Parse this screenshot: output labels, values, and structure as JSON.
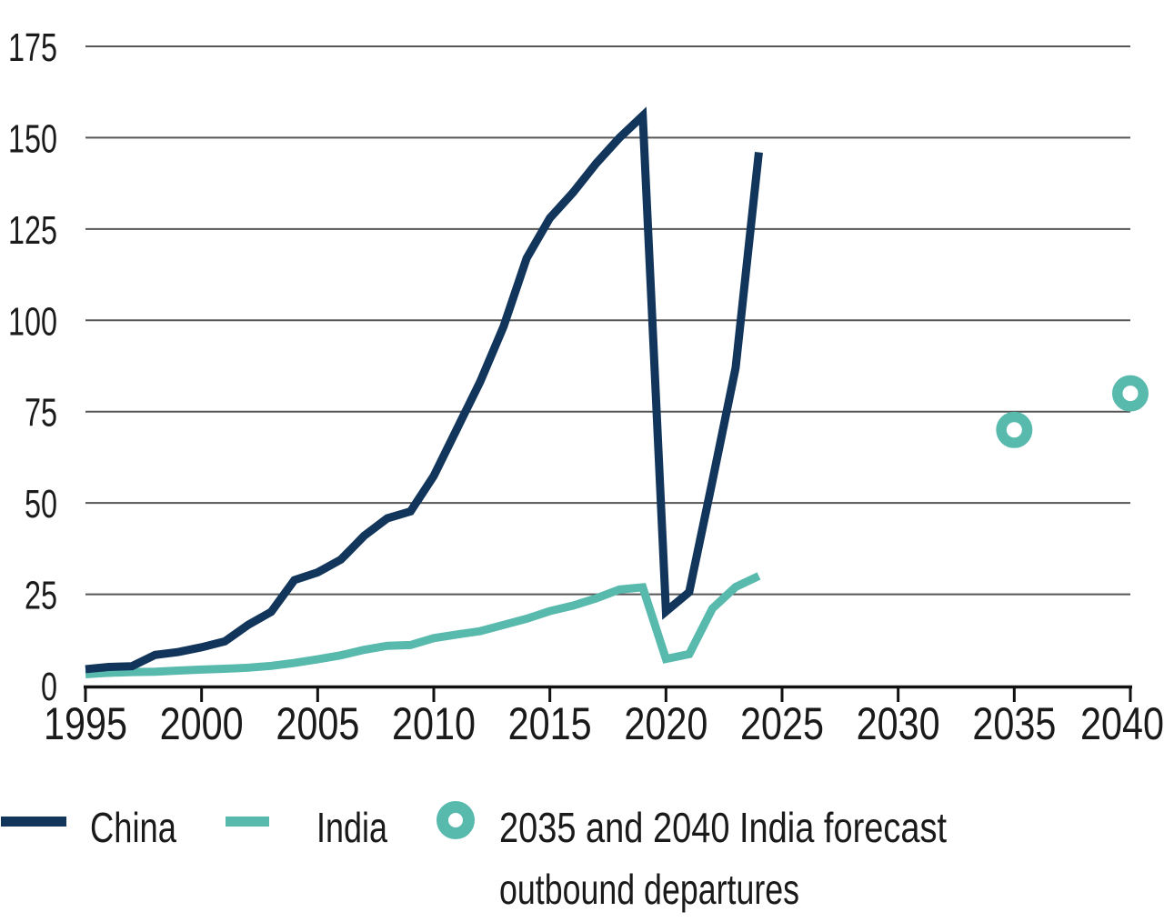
{
  "chart_data": {
    "type": "line",
    "title": "",
    "xlabel": "",
    "ylabel": "",
    "xlim": [
      1995,
      2040
    ],
    "ylim": [
      0,
      175
    ],
    "x_ticks": [
      1995,
      2000,
      2005,
      2010,
      2015,
      2020,
      2025,
      2030,
      2035,
      2040
    ],
    "y_ticks": [
      0,
      25,
      50,
      75,
      100,
      125,
      150,
      175
    ],
    "grid": "horizontal",
    "legend_position": "bottom",
    "x": [
      1995,
      1996,
      1997,
      1998,
      1999,
      2000,
      2001,
      2002,
      2003,
      2004,
      2005,
      2006,
      2007,
      2008,
      2009,
      2010,
      2011,
      2012,
      2013,
      2014,
      2015,
      2016,
      2017,
      2018,
      2019,
      2020,
      2021,
      2022,
      2023,
      2024
    ],
    "series": [
      {
        "name": "India",
        "color": "#58b9ad",
        "values": [
          3.1,
          3.5,
          3.7,
          3.8,
          4.1,
          4.4,
          4.6,
          4.9,
          5.4,
          6.2,
          7.2,
          8.3,
          9.8,
          10.9,
          11.1,
          13,
          14,
          14.9,
          16.6,
          18.3,
          20.4,
          21.9,
          23.9,
          26.3,
          26.9,
          7.3,
          8.6,
          21.1,
          27,
          30
        ]
      },
      {
        "name": "China",
        "color": "#12355b",
        "values": [
          4.5,
          5.1,
          5.3,
          8.4,
          9.2,
          10.5,
          12.1,
          16.6,
          20.2,
          28.9,
          31,
          34.5,
          41,
          45.8,
          47.7,
          57.4,
          70.3,
          83.2,
          98.2,
          117,
          128,
          135,
          143,
          150,
          156,
          20.3,
          25.6,
          56,
          87,
          146
        ]
      }
    ],
    "forecast_points": {
      "name": "2035 and 2040 India forecast outbound departures",
      "color": "#58b9ad",
      "points": [
        {
          "x": 2035,
          "value": 70
        },
        {
          "x": 2040,
          "value": 80
        }
      ]
    }
  },
  "legend": {
    "china_label": "China",
    "india_label": "India",
    "forecast_label_line1": "2035 and 2040 India forecast",
    "forecast_label_line2": "outbound departures"
  },
  "colors": {
    "china": "#12355b",
    "india": "#58b9ad",
    "gridline": "#555555",
    "axis": "#111111",
    "text": "#1a1a1a",
    "background": "#ffffff"
  }
}
